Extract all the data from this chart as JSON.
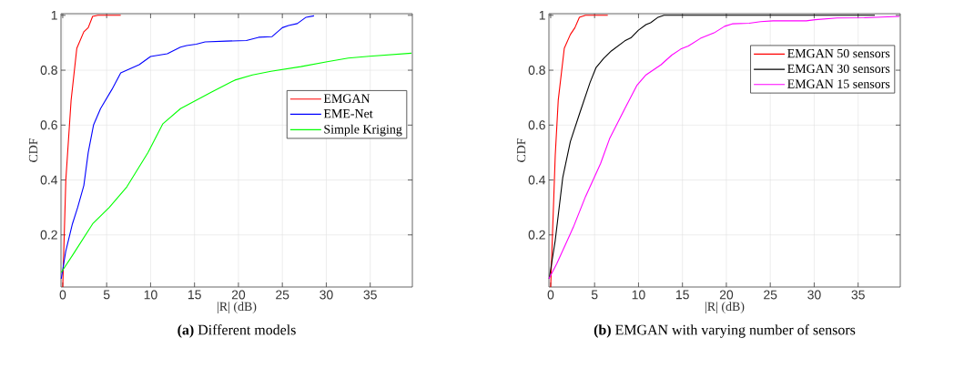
{
  "chart_data": [
    {
      "type": "line",
      "title": "**(a)** Different models",
      "xlabel": "|R| (dB)",
      "ylabel": "CDF",
      "xlim": [
        -0.2,
        39.8
      ],
      "ylim": [
        0.01,
        1.006
      ],
      "xticks": [
        0,
        5,
        10,
        15,
        20,
        25,
        30,
        35
      ],
      "yticks": [
        0.2,
        0.4,
        0.6,
        0.8,
        1
      ],
      "grid": true,
      "legend": "right",
      "series": [
        {
          "name": "EMGAN",
          "color": "#ff0000",
          "x": [
            0,
            0.35,
            0.95,
            1.6,
            2.4,
            2.9,
            3.4,
            4,
            6.6
          ],
          "values": [
            0.01,
            0.4,
            0.69,
            0.88,
            0.94,
            0.955,
            0.996,
            1,
            1
          ]
        },
        {
          "name": "EME-Net",
          "color": "#0000ff",
          "x": [
            -0.17,
            0.34,
            1.1,
            1.7,
            2.4,
            2.9,
            3.5,
            4.3,
            5.6,
            6.6,
            7.3,
            8.7,
            10,
            11.9,
            13.4,
            14.1,
            15.2,
            16.2,
            18.6,
            20.9,
            22.3,
            23.8,
            25,
            25.7,
            26.7,
            27.7,
            28.6
          ],
          "values": [
            0.04,
            0.14,
            0.24,
            0.3,
            0.38,
            0.5,
            0.6,
            0.66,
            0.73,
            0.79,
            0.8,
            0.82,
            0.85,
            0.86,
            0.884,
            0.89,
            0.895,
            0.903,
            0.906,
            0.908,
            0.92,
            0.922,
            0.955,
            0.963,
            0.97,
            0.993,
            0.998
          ]
        },
        {
          "name": "Simple Kriging",
          "color": "#00ff00",
          "x": [
            -0.17,
            1.2,
            3.4,
            5.3,
            7.3,
            9.7,
            11.4,
            13.4,
            16.9,
            19.6,
            21.6,
            23.7,
            27.1,
            30.1,
            32.5,
            34.9,
            39.7
          ],
          "values": [
            0.063,
            0.13,
            0.24,
            0.3,
            0.375,
            0.5,
            0.605,
            0.66,
            0.72,
            0.764,
            0.783,
            0.796,
            0.813,
            0.831,
            0.844,
            0.851,
            0.862
          ]
        }
      ]
    },
    {
      "type": "line",
      "title": "**(b)** EMGAN with varying number of sensors",
      "xlabel": "|R| (dB)",
      "ylabel": "CDF",
      "xlim": [
        -0.2,
        39.8
      ],
      "ylim": [
        0.01,
        1.006
      ],
      "xticks": [
        0,
        5,
        10,
        15,
        20,
        25,
        30,
        35
      ],
      "yticks": [
        0.2,
        0.4,
        0.6,
        0.8,
        1
      ],
      "grid": true,
      "legend": "top right",
      "series": [
        {
          "name": "EMGAN 50 sensors",
          "color": "#ff0000",
          "x": [
            0,
            0.52,
            0.86,
            1.55,
            2.24,
            2.76,
            3.27,
            3.96,
            6.5
          ],
          "values": [
            0.01,
            0.49,
            0.69,
            0.88,
            0.93,
            0.955,
            0.993,
            1,
            1
          ]
        },
        {
          "name": "EMGAN 30 sensors",
          "color": "#000000",
          "x": [
            -0.17,
            0.52,
            1.38,
            2.24,
            3.27,
            4.48,
            5.17,
            6.03,
            6.9,
            8.44,
            9.13,
            9.99,
            10.85,
            11.37,
            12.23,
            12.9,
            36.9
          ],
          "values": [
            0.04,
            0.18,
            0.41,
            0.54,
            0.64,
            0.755,
            0.81,
            0.843,
            0.87,
            0.907,
            0.918,
            0.946,
            0.966,
            0.973,
            0.993,
            1,
            1
          ]
        },
        {
          "name": "EMGAN 15 sensors",
          "color": "#ff00ff",
          "x": [
            -0.2,
            0.69,
            2.58,
            3.96,
            5.68,
            6.7,
            8.44,
            9.8,
            10.85,
            12.57,
            13.78,
            14.81,
            15.67,
            17.05,
            18.6,
            19.8,
            20.67,
            22.6,
            23.9,
            25.3,
            29.1,
            30.1,
            32.6,
            35.7,
            39.7
          ],
          "values": [
            0.04,
            0.095,
            0.228,
            0.339,
            0.46,
            0.55,
            0.66,
            0.744,
            0.783,
            0.82,
            0.855,
            0.877,
            0.888,
            0.916,
            0.936,
            0.96,
            0.969,
            0.971,
            0.977,
            0.98,
            0.98,
            0.984,
            0.99,
            0.991,
            0.996
          ]
        }
      ]
    }
  ]
}
